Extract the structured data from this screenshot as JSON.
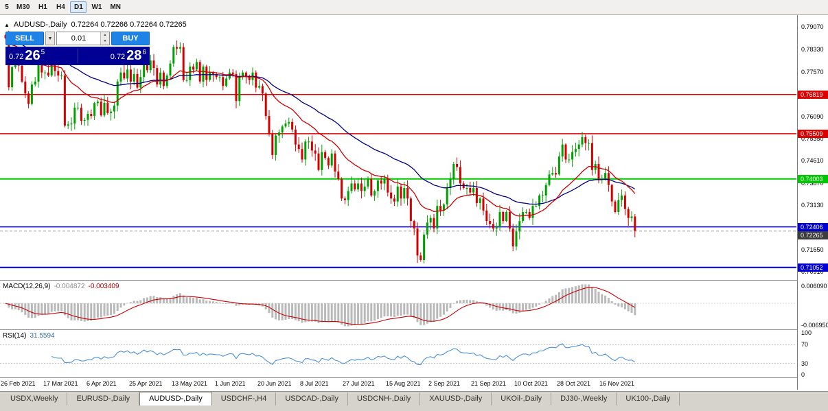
{
  "toolbar": {
    "timeframe_buttons": [
      "5",
      "M30",
      "H1",
      "H4",
      "D1",
      "W1",
      "MN"
    ],
    "active": "D1"
  },
  "chart": {
    "header_symbol": "AUDUSD-,Daily",
    "header_ohlc": "0.72264 0.72266 0.72264 0.72265"
  },
  "trade_panel": {
    "sell_label": "SELL",
    "buy_label": "BUY",
    "lot_value": "0.01",
    "bid": {
      "big": "0.72",
      "pips": "26",
      "pt": "5"
    },
    "ask": {
      "big": "0.72",
      "pips": "28",
      "pt": "6"
    }
  },
  "price_axis_labels": [
    "0.79070",
    "0.78330",
    "0.77570",
    "0.76810",
    "0.76090",
    "0.75350",
    "0.74610",
    "0.73870",
    "0.73130",
    "0.72390",
    "0.71650",
    "0.70910"
  ],
  "macd_panel": {
    "title": "MACD(12,26,9)",
    "value_main": "-0.004872",
    "value_signal": "-0.003409",
    "axis_top": "0.006090",
    "axis_bottom": "-0.006950"
  },
  "rsi_panel": {
    "title": "RSI(14)",
    "value": "31.5594",
    "axis_labels": [
      "100",
      "70",
      "30",
      "0"
    ]
  },
  "tabs": [
    {
      "label": "USDX,Weekly",
      "active": false
    },
    {
      "label": "EURUSD-,Daily",
      "active": false
    },
    {
      "label": "AUDUSD-,Daily",
      "active": true
    },
    {
      "label": "USDCHF-,H4",
      "active": false
    },
    {
      "label": "USDCAD-,Daily",
      "active": false
    },
    {
      "label": "USDCNH-,Daily",
      "active": false
    },
    {
      "label": "XAUUSD-,Daily",
      "active": false
    },
    {
      "label": "UKOil-,Daily",
      "active": false
    },
    {
      "label": "DJ30-,Weekly",
      "active": false
    },
    {
      "label": "UK100-,Daily",
      "active": false
    }
  ],
  "chart_data": {
    "type": "candlestick",
    "symbol": "AUDUSD-",
    "timeframe": "Daily",
    "y_range": [
      0.7068,
      0.7942
    ],
    "first_open": 0.788,
    "closes": [
      0.787,
      0.7706,
      0.7773,
      0.7817,
      0.7778,
      0.7725,
      0.7685,
      0.765,
      0.7715,
      0.7725,
      0.7786,
      0.7755,
      0.7755,
      0.7745,
      0.78,
      0.776,
      0.7745,
      0.7745,
      0.7578,
      0.7582,
      0.7585,
      0.7638,
      0.7638,
      0.7594,
      0.7597,
      0.7617,
      0.761,
      0.7653,
      0.7658,
      0.7612,
      0.7654,
      0.762,
      0.7625,
      0.7645,
      0.7725,
      0.7755,
      0.7735,
      0.7765,
      0.7725,
      0.775,
      0.7705,
      0.774,
      0.78,
      0.7763,
      0.7795,
      0.777,
      0.7715,
      0.7755,
      0.771,
      0.7745,
      0.7785,
      0.784,
      0.7835,
      0.784,
      0.773,
      0.773,
      0.7775,
      0.7765,
      0.779,
      0.7725,
      0.7775,
      0.773,
      0.7755,
      0.775,
      0.774,
      0.774,
      0.771,
      0.7735,
      0.7755,
      0.775,
      0.766,
      0.774,
      0.7755,
      0.774,
      0.773,
      0.7755,
      0.7705,
      0.771,
      0.7685,
      0.761,
      0.755,
      0.748,
      0.7545,
      0.7555,
      0.7575,
      0.7585,
      0.759,
      0.7565,
      0.7515,
      0.75,
      0.7465,
      0.7525,
      0.7525,
      0.7495,
      0.7485,
      0.743,
      0.749,
      0.747,
      0.7445,
      0.7485,
      0.7425,
      0.74,
      0.7335,
      0.733,
      0.736,
      0.7385,
      0.7365,
      0.7385,
      0.736,
      0.7375,
      0.74,
      0.7345,
      0.736,
      0.7395,
      0.7385,
      0.74,
      0.7355,
      0.7335,
      0.7325,
      0.7375,
      0.7335,
      0.737,
      0.7335,
      0.726,
      0.7235,
      0.7145,
      0.713,
      0.7215,
      0.7255,
      0.727,
      0.7235,
      0.731,
      0.7295,
      0.7315,
      0.737,
      0.74,
      0.745,
      0.744,
      0.7385,
      0.737,
      0.737,
      0.7355,
      0.737,
      0.732,
      0.7335,
      0.7295,
      0.726,
      0.725,
      0.7235,
      0.724,
      0.729,
      0.726,
      0.729,
      0.7235,
      0.7175,
      0.7225,
      0.726,
      0.729,
      0.729,
      0.727,
      0.731,
      0.731,
      0.7345,
      0.7345,
      0.738,
      0.7415,
      0.742,
      0.7415,
      0.7475,
      0.7515,
      0.7465,
      0.7465,
      0.749,
      0.75,
      0.7515,
      0.754,
      0.752,
      0.752,
      0.743,
      0.745,
      0.74,
      0.74,
      0.742,
      0.738,
      0.7325,
      0.729,
      0.733,
      0.7345,
      0.73,
      0.727,
      0.7275,
      0.7227
    ],
    "date_labels": [
      "26 Feb 2021",
      "17 Mar 2021",
      "6 Apr 2021",
      "25 Apr 2021",
      "13 May 2021",
      "1 Jun 2021",
      "20 Jun 2021",
      "8 Jul 2021",
      "27 Jul 2021",
      "15 Aug 2021",
      "2 Sep 2021",
      "21 Sep 2021",
      "10 Oct 2021",
      "28 Oct 2021",
      "16 Nov 2021"
    ],
    "levels": [
      {
        "price": 0.76819,
        "label": "0.76819",
        "color": "#dd0000",
        "width": 1.5
      },
      {
        "price": 0.75509,
        "label": "0.75509",
        "color": "#dd0000",
        "width": 1.5
      },
      {
        "price": 0.74003,
        "label": "0.74003",
        "color": "#00c800",
        "width": 2
      },
      {
        "price": 0.72406,
        "label": "0.72406",
        "color": "#0000d0",
        "width": 1.5
      },
      {
        "price": 0.71052,
        "label": "0.71052",
        "color": "#0000d0",
        "width": 2
      }
    ],
    "current_bid": {
      "price": 0.72265,
      "label": "0.72265",
      "color": "#3c3c3c"
    },
    "colors": {
      "up": "#00a000",
      "down": "#d40000",
      "ma_fast": "#cc0000",
      "ma_slow": "#000080",
      "macd_hist": "#b9b9b9",
      "macd_signal": "#cc0000",
      "rsi": "#4a90d9"
    },
    "indicators": {
      "ma_fast": {
        "type": "EMA",
        "period": 20
      },
      "ma_slow": {
        "type": "EMA",
        "period": 45
      },
      "macd": {
        "fast": 12,
        "slow": 26,
        "signal": 9,
        "display_values": [
          -0.004872,
          -0.003409
        ]
      },
      "rsi": {
        "period": 14,
        "display_value": 31.5594
      }
    }
  }
}
